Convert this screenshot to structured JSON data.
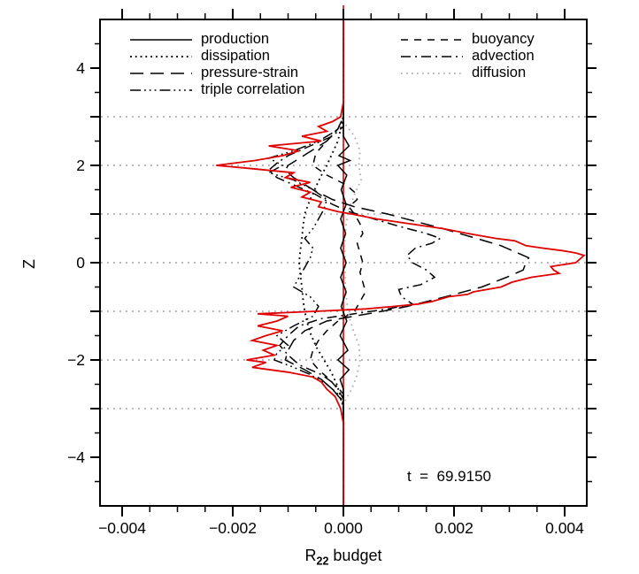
{
  "figure": {
    "background": "#ffffff"
  },
  "annotation": {
    "text": "t  =  69.9150"
  },
  "chart_data": {
    "type": "line",
    "title": "",
    "xlabel": {
      "base": "R",
      "sub": "22",
      "rest": " budget"
    },
    "ylabel": "Z",
    "xlim": [
      -0.0044,
      0.0044
    ],
    "ylim": [
      -5,
      5
    ],
    "x_major_ticks": [
      -0.004,
      -0.002,
      0,
      0.002,
      0.004
    ],
    "x_tick_labels": [
      "−0.004",
      "−0.002",
      "0.000",
      "0.002",
      "0.004"
    ],
    "x_minor_step": 0.0005,
    "y_major_step": 1,
    "y_minor_step": 0.5,
    "y_labeled_ticks": [
      4,
      2,
      0,
      -2,
      -4
    ],
    "y_tick_labels": [
      "4",
      "2",
      "0",
      "−2",
      "−4"
    ],
    "gridlines_z": [
      3,
      2,
      1,
      0,
      -1,
      -2,
      -3
    ],
    "grid_color": "#999999",
    "zero_line": {
      "x": 0,
      "color": "#e00000"
    },
    "time_annotation": "t = 69.9150",
    "legend_position": "inside plot, top, two columns",
    "values_note": "curve values estimated from pixels; units of R22 budget",
    "series": [
      {
        "name": "production",
        "color": "#000000",
        "style": "solid",
        "points": [
          [
            5,
            0
          ],
          [
            2.6,
            0
          ],
          [
            2.4,
            0.0001
          ],
          [
            2.2,
            -8e-05
          ],
          [
            2.1,
            0.00012
          ],
          [
            2.0,
            -0.0001
          ],
          [
            1.8,
            6e-05
          ],
          [
            1.5,
            -4e-05
          ],
          [
            1.2,
            5e-05
          ],
          [
            0.9,
            -5e-05
          ],
          [
            0.6,
            4e-05
          ],
          [
            0.3,
            -5e-05
          ],
          [
            0.0,
            5e-05
          ],
          [
            -0.3,
            -5e-05
          ],
          [
            -0.6,
            5e-05
          ],
          [
            -0.9,
            -4e-05
          ],
          [
            -1.2,
            6e-05
          ],
          [
            -1.5,
            -6e-05
          ],
          [
            -1.8,
            8e-05
          ],
          [
            -2.0,
            -0.0001
          ],
          [
            -2.2,
            0.0001
          ],
          [
            -2.4,
            -6e-05
          ],
          [
            -2.6,
            0
          ],
          [
            -5,
            0
          ]
        ]
      },
      {
        "name": "dissipation",
        "color": "#000000",
        "style": "dotted",
        "points": [
          [
            5,
            0
          ],
          [
            3,
            0
          ],
          [
            2.75,
            -5e-05
          ],
          [
            2.5,
            -0.0001
          ],
          [
            2.25,
            -0.0002
          ],
          [
            2.0,
            -0.0003
          ],
          [
            1.75,
            -0.00042
          ],
          [
            1.5,
            -0.00052
          ],
          [
            1.25,
            -0.00062
          ],
          [
            1.0,
            -0.0007
          ],
          [
            0.75,
            -0.00073
          ],
          [
            0.5,
            -0.00075
          ],
          [
            0.25,
            -0.00078
          ],
          [
            0.0,
            -0.0008
          ],
          [
            -0.25,
            -0.00078
          ],
          [
            -0.5,
            -0.00075
          ],
          [
            -0.75,
            -0.00073
          ],
          [
            -1.0,
            -0.0007
          ],
          [
            -1.25,
            -0.00065
          ],
          [
            -1.5,
            -0.00058
          ],
          [
            -1.75,
            -0.00048
          ],
          [
            -2.0,
            -0.00035
          ],
          [
            -2.25,
            -0.00022
          ],
          [
            -2.5,
            -0.00012
          ],
          [
            -2.75,
            -5e-05
          ],
          [
            -3,
            0
          ],
          [
            -5,
            0
          ]
        ]
      },
      {
        "name": "pressure-strain",
        "color": "#000000",
        "style": "long-dash",
        "points": [
          [
            5,
            0
          ],
          [
            3,
            0
          ],
          [
            2.75,
            -0.0001
          ],
          [
            2.5,
            -0.0003
          ],
          [
            2.25,
            -0.00065
          ],
          [
            2.0,
            -0.001
          ],
          [
            1.9,
            -0.00105
          ],
          [
            1.75,
            -0.0009
          ],
          [
            1.5,
            -0.00055
          ],
          [
            1.3,
            -0.0002
          ],
          [
            1.15,
            0.0002
          ],
          [
            1.0,
            0.0008
          ],
          [
            0.85,
            0.0013
          ],
          [
            0.7,
            0.0018
          ],
          [
            0.5,
            0.0024
          ],
          [
            0.35,
            0.00285
          ],
          [
            0.2,
            0.00315
          ],
          [
            0.1,
            0.00335
          ],
          [
            0.0,
            0.0033
          ],
          [
            -0.15,
            0.00325
          ],
          [
            -0.3,
            0.00295
          ],
          [
            -0.5,
            0.0025
          ],
          [
            -0.7,
            0.00185
          ],
          [
            -0.9,
            0.00115
          ],
          [
            -1.0,
            0.0007
          ],
          [
            -1.1,
            0.0002
          ],
          [
            -1.2,
            -0.0003
          ],
          [
            -1.4,
            -0.0007
          ],
          [
            -1.6,
            -0.0009
          ],
          [
            -1.8,
            -0.001
          ],
          [
            -2.0,
            -0.00105
          ],
          [
            -2.2,
            -0.0007
          ],
          [
            -2.4,
            -0.0004
          ],
          [
            -2.6,
            -0.0002
          ],
          [
            -2.8,
            -5e-05
          ],
          [
            -3,
            0
          ],
          [
            -5,
            0
          ]
        ]
      },
      {
        "name": "triple correlation",
        "color": "#000000",
        "style": "dash-triple-dot",
        "points": [
          [
            5,
            0
          ],
          [
            2.9,
            0
          ],
          [
            2.7,
            -0.00015
          ],
          [
            2.5,
            -0.00045
          ],
          [
            2.3,
            -0.0009
          ],
          [
            2.15,
            -0.00135
          ],
          [
            2.0,
            -0.0011
          ],
          [
            1.85,
            -0.00135
          ],
          [
            1.7,
            -0.0009
          ],
          [
            1.5,
            -0.00055
          ],
          [
            1.3,
            -0.0003
          ],
          [
            1.1,
            -0.00035
          ],
          [
            0.9,
            -0.00045
          ],
          [
            0.7,
            -0.00055
          ],
          [
            0.5,
            -0.0007
          ],
          [
            0.3,
            -0.00055
          ],
          [
            0.1,
            -0.0006
          ],
          [
            -0.1,
            -0.0007
          ],
          [
            -0.3,
            -0.0008
          ],
          [
            -0.5,
            -0.0009
          ],
          [
            -0.7,
            -0.0006
          ],
          [
            -0.9,
            -0.00045
          ],
          [
            -1.1,
            -0.00055
          ],
          [
            -1.3,
            -0.0009
          ],
          [
            -1.5,
            -0.0012
          ],
          [
            -1.7,
            -0.001
          ],
          [
            -1.85,
            -0.0012
          ],
          [
            -2.0,
            -0.00125
          ],
          [
            -2.15,
            -0.0009
          ],
          [
            -2.3,
            -0.0006
          ],
          [
            -2.5,
            -0.0003
          ],
          [
            -2.7,
            -0.0001
          ],
          [
            -2.9,
            0
          ],
          [
            -5,
            0
          ]
        ]
      },
      {
        "name": "buoyancy",
        "color": "#000000",
        "style": "short-dash",
        "points": [
          [
            5,
            0
          ],
          [
            3,
            0
          ],
          [
            2.75,
            -0.0001
          ],
          [
            2.5,
            -0.0003
          ],
          [
            2.25,
            -0.0005
          ],
          [
            2.0,
            -0.00055
          ],
          [
            1.8,
            -0.0003
          ],
          [
            1.6,
            5e-05
          ],
          [
            1.45,
            0.0002
          ],
          [
            1.3,
            0.00025
          ],
          [
            1.15,
            0.0001
          ],
          [
            1.0,
            0.0002
          ],
          [
            0.8,
            0.0003
          ],
          [
            0.6,
            0.00035
          ],
          [
            0.4,
            0.00025
          ],
          [
            0.2,
            0.0003
          ],
          [
            0.0,
            0.00035
          ],
          [
            -0.2,
            0.0003
          ],
          [
            -0.4,
            0.00035
          ],
          [
            -0.6,
            0.0004
          ],
          [
            -0.8,
            0.0003
          ],
          [
            -1.0,
            0.0002
          ],
          [
            -1.2,
            -0.0001
          ],
          [
            -1.4,
            -0.0003
          ],
          [
            -1.6,
            -0.00045
          ],
          [
            -1.8,
            -0.00055
          ],
          [
            -2.0,
            -0.0006
          ],
          [
            -2.2,
            -0.00045
          ],
          [
            -2.4,
            -0.00025
          ],
          [
            -2.6,
            -0.0001
          ],
          [
            -2.8,
            0
          ],
          [
            -5,
            0
          ]
        ]
      },
      {
        "name": "advection",
        "color": "#000000",
        "style": "dash-dot",
        "points": [
          [
            5,
            0
          ],
          [
            2.8,
            0
          ],
          [
            2.6,
            -0.0002
          ],
          [
            2.4,
            -0.0006
          ],
          [
            2.2,
            -0.001
          ],
          [
            2.05,
            -0.0012
          ],
          [
            1.9,
            -0.00135
          ],
          [
            1.75,
            -0.0012
          ],
          [
            1.6,
            -0.0009
          ],
          [
            1.4,
            -0.0005
          ],
          [
            1.2,
            -0.0002
          ],
          [
            1.05,
            0.0001
          ],
          [
            0.9,
            0.00055
          ],
          [
            0.75,
            0.001
          ],
          [
            0.6,
            0.0015
          ],
          [
            0.5,
            0.00175
          ],
          [
            0.4,
            0.0016
          ],
          [
            0.3,
            0.0013
          ],
          [
            0.15,
            0.00115
          ],
          [
            0.0,
            0.00125
          ],
          [
            -0.15,
            0.0015
          ],
          [
            -0.3,
            0.00165
          ],
          [
            -0.45,
            0.0014
          ],
          [
            -0.55,
            0.001
          ],
          [
            -0.7,
            0.00105
          ],
          [
            -0.85,
            0.00125
          ],
          [
            -0.95,
            0.0008
          ],
          [
            -1.05,
            0.0002
          ],
          [
            -1.15,
            -0.0004
          ],
          [
            -1.3,
            -0.0008
          ],
          [
            -1.5,
            -0.001
          ],
          [
            -1.7,
            -0.00115
          ],
          [
            -1.9,
            -0.001
          ],
          [
            -2.1,
            -0.0008
          ],
          [
            -2.3,
            -0.0004
          ],
          [
            -2.5,
            -0.00015
          ],
          [
            -2.7,
            0
          ],
          [
            -5,
            0
          ]
        ]
      },
      {
        "name": "diffusion",
        "color": "#aaaaaa",
        "style": "fine-dot",
        "points": [
          [
            5,
            0
          ],
          [
            2.9,
            0
          ],
          [
            2.6,
            0.0002
          ],
          [
            2.3,
            0.0003
          ],
          [
            2.0,
            0.00028
          ],
          [
            1.7,
            0.00032
          ],
          [
            1.4,
            0.0002
          ],
          [
            1.1,
            0.0001
          ],
          [
            0.8,
            5e-05
          ],
          [
            0.4,
            2e-05
          ],
          [
            0.0,
            3e-05
          ],
          [
            -0.4,
            3e-05
          ],
          [
            -0.8,
            6e-05
          ],
          [
            -1.1,
            0.0001
          ],
          [
            -1.4,
            0.00018
          ],
          [
            -1.7,
            0.00028
          ],
          [
            -2.0,
            0.0003
          ],
          [
            -2.3,
            0.00025
          ],
          [
            -2.6,
            0.00015
          ],
          [
            -2.9,
            0
          ],
          [
            -5,
            0
          ]
        ]
      },
      {
        "name": "net balance (red, unlabeled)",
        "color": "#e00000",
        "style": "solid",
        "points": [
          [
            5,
            0
          ],
          [
            3.3,
            0
          ],
          [
            3.0,
            -5e-05
          ],
          [
            2.9,
            -0.0002
          ],
          [
            2.8,
            -0.00045
          ],
          [
            2.7,
            -0.0003
          ],
          [
            2.6,
            -0.00075
          ],
          [
            2.5,
            -0.0004
          ],
          [
            2.4,
            -0.00135
          ],
          [
            2.3,
            -0.0008
          ],
          [
            2.2,
            -0.0011
          ],
          [
            2.1,
            -0.0016
          ],
          [
            2.0,
            -0.0023
          ],
          [
            1.95,
            -0.0018
          ],
          [
            1.85,
            -0.0009
          ],
          [
            1.75,
            -0.00105
          ],
          [
            1.65,
            -0.0006
          ],
          [
            1.55,
            -0.00095
          ],
          [
            1.45,
            -0.0006
          ],
          [
            1.35,
            -0.00075
          ],
          [
            1.25,
            -0.0004
          ],
          [
            1.15,
            -0.00045
          ],
          [
            1.05,
            -0.0001
          ],
          [
            1.0,
            0.00015
          ],
          [
            0.9,
            0.0006
          ],
          [
            0.8,
            0.0012
          ],
          [
            0.7,
            0.0018
          ],
          [
            0.6,
            0.00225
          ],
          [
            0.5,
            0.00275
          ],
          [
            0.45,
            0.0031
          ],
          [
            0.35,
            0.0033
          ],
          [
            0.3,
            0.0036
          ],
          [
            0.25,
            0.00395
          ],
          [
            0.2,
            0.0042
          ],
          [
            0.15,
            0.00435
          ],
          [
            0.1,
            0.0043
          ],
          [
            0.0,
            0.0042
          ],
          [
            -0.08,
            0.00375
          ],
          [
            -0.15,
            0.0038
          ],
          [
            -0.22,
            0.0039
          ],
          [
            -0.3,
            0.0034
          ],
          [
            -0.4,
            0.00305
          ],
          [
            -0.5,
            0.00285
          ],
          [
            -0.6,
            0.00235
          ],
          [
            -0.65,
            0.00225
          ],
          [
            -0.7,
            0.0019
          ],
          [
            -0.8,
            0.0016
          ],
          [
            -0.85,
            0.00135
          ],
          [
            -0.9,
            0.0009
          ],
          [
            -0.95,
            0.0004
          ],
          [
            -1.0,
            -0.0005
          ],
          [
            -1.05,
            -0.00155
          ],
          [
            -1.1,
            -0.001
          ],
          [
            -1.2,
            -0.0012
          ],
          [
            -1.3,
            -0.00155
          ],
          [
            -1.4,
            -0.0011
          ],
          [
            -1.5,
            -0.0014
          ],
          [
            -1.6,
            -0.00165
          ],
          [
            -1.7,
            -0.0012
          ],
          [
            -1.8,
            -0.00145
          ],
          [
            -1.9,
            -0.00125
          ],
          [
            -2.0,
            -0.00175
          ],
          [
            -2.05,
            -0.0014
          ],
          [
            -2.15,
            -0.00165
          ],
          [
            -2.25,
            -0.001
          ],
          [
            -2.35,
            -0.00055
          ],
          [
            -2.45,
            -0.0004
          ],
          [
            -2.6,
            -0.0003
          ],
          [
            -2.75,
            -0.00015
          ],
          [
            -3.0,
            -5e-05
          ],
          [
            -3.3,
            0
          ],
          [
            -5,
            0
          ]
        ]
      }
    ]
  }
}
